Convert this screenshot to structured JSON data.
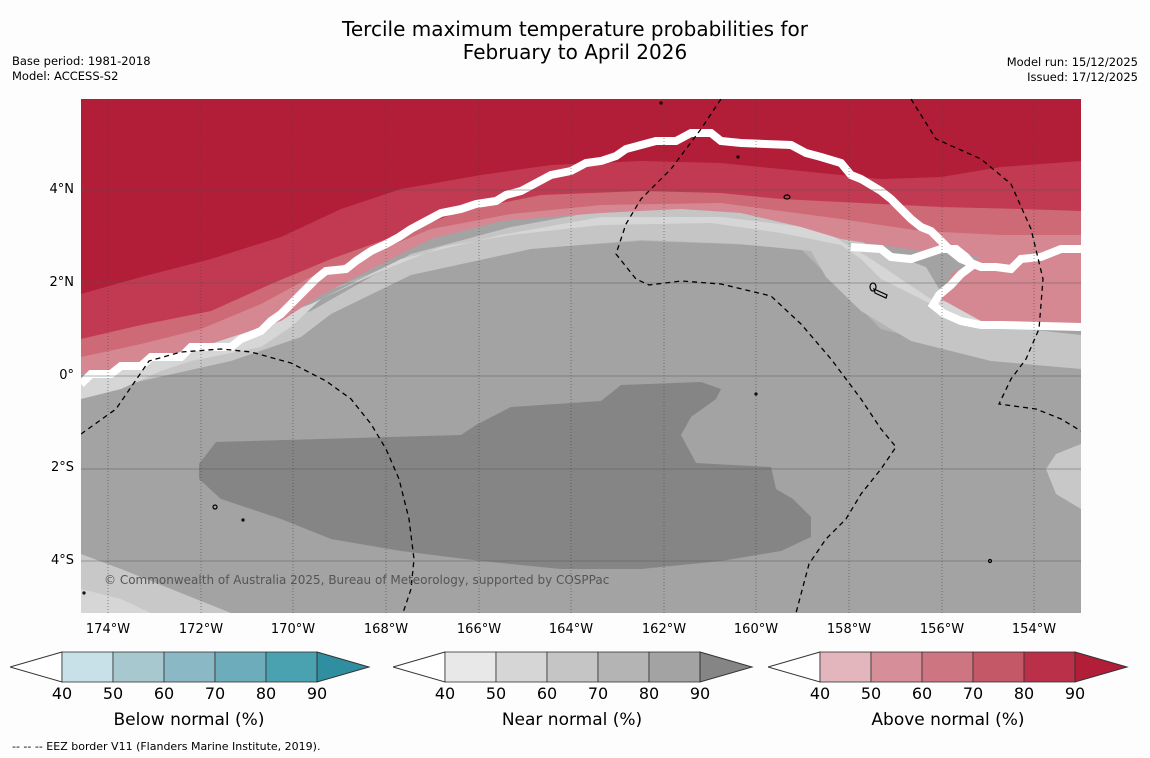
{
  "title": {
    "line1": "Tercile maximum temperature probabilities for",
    "line2": "February to April 2026"
  },
  "meta_left": {
    "base_period": "Base period: 1981-2018",
    "model": "Model: ACCESS-S2"
  },
  "meta_right": {
    "model_run": "Model run: 15/12/2025",
    "issued": "Issued: 17/12/2025"
  },
  "map": {
    "latitude_labels": [
      "4°N",
      "2°N",
      "0°",
      "2°S",
      "4°S"
    ],
    "longitude_labels": [
      "174°W",
      "172°W",
      "170°W",
      "168°W",
      "166°W",
      "164°W",
      "162°W",
      "160°W",
      "158°W",
      "156°W",
      "154°W"
    ],
    "copyright": "© Commonwealth of Australia 2025, Bureau of Meteorology, supported by COSPPac",
    "colors": {
      "above_90": "#b21d38",
      "above_80": "#c13a52",
      "above_70": "#cd6a76",
      "above_60": "#d68892",
      "near_40": "#e8e8e8",
      "near_50": "#d6d6d6",
      "near_60": "#c5c5c5",
      "near_70": "#b4b4b4",
      "near_80": "#a3a3a3",
      "near_90": "#858585"
    }
  },
  "colorbars": [
    {
      "title": "Below normal (%)",
      "ticks": [
        "40",
        "50",
        "60",
        "70",
        "80",
        "90"
      ],
      "colors": [
        "#c8e1e8",
        "#a8c8cf",
        "#8ab8c5",
        "#6cacbb",
        "#4aa1b0",
        "#2f8fa0"
      ]
    },
    {
      "title": "Near normal (%)",
      "ticks": [
        "40",
        "50",
        "60",
        "70",
        "80",
        "90"
      ],
      "colors": [
        "#e8e8e8",
        "#d6d6d6",
        "#c5c5c5",
        "#b4b4b4",
        "#a3a3a3",
        "#858585"
      ]
    },
    {
      "title": "Above normal (%)",
      "ticks": [
        "40",
        "50",
        "60",
        "70",
        "80",
        "90"
      ],
      "colors": [
        "#e3b6bd",
        "#d68f99",
        "#cd7580",
        "#c45866",
        "#ba3049",
        "#b21d38"
      ]
    }
  ],
  "footnote": "--  --  -- EEZ border V11 (Flanders Marine Institute, 2019)."
}
